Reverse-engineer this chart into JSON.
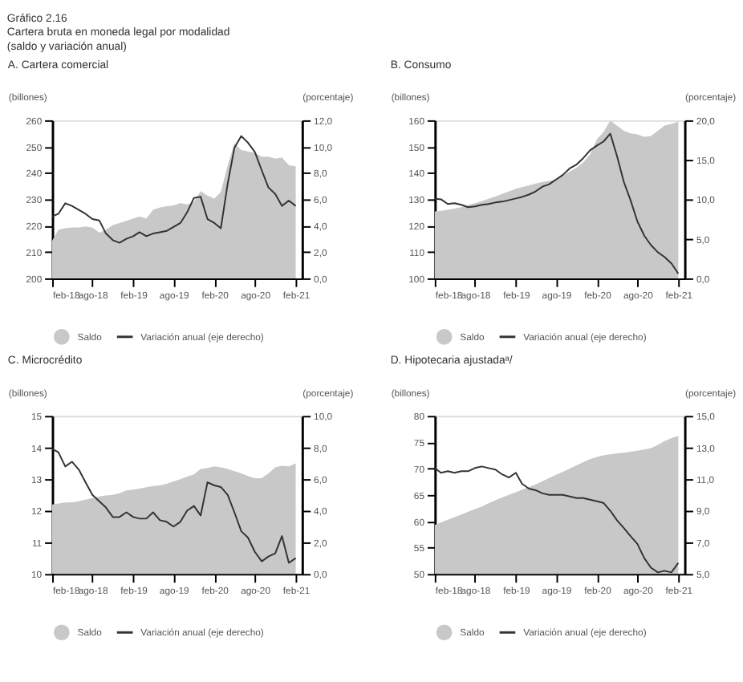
{
  "chart_data": [
    {
      "type": "line",
      "title": "A. Cartera comercial",
      "annotations": [
        "Gráfico 2.16",
        "Cartera bruta en moneda legal por modalidad",
        "(saldo y variación anual)"
      ],
      "ylabel": "(billones)",
      "y2label": "(porcentaje)",
      "legend": "bottom",
      "grid": false,
      "x": [
        "2018-02",
        "2018-03",
        "2018-04",
        "2018-05",
        "2018-06",
        "2018-07",
        "2018-08",
        "2018-09",
        "2018-10",
        "2018-11",
        "2018-12",
        "2019-01",
        "2019-02",
        "2019-03",
        "2019-04",
        "2019-05",
        "2019-06",
        "2019-07",
        "2019-08",
        "2019-09",
        "2019-10",
        "2019-11",
        "2019-12",
        "2020-01",
        "2020-02",
        "2020-03",
        "2020-04",
        "2020-05",
        "2020-06",
        "2020-07",
        "2020-08",
        "2020-09",
        "2020-10",
        "2020-11",
        "2020-12",
        "2021-01",
        "2021-02"
      ],
      "xlim": [
        "2018-02",
        "2021-03"
      ],
      "xticks": [
        {
          "value": "2018-02",
          "label": "feb-18"
        },
        {
          "value": "2018-08",
          "label": "ago-18"
        },
        {
          "value": "2019-02",
          "label": "feb-19"
        },
        {
          "value": "2019-08",
          "label": "ago-19"
        },
        {
          "value": "2020-02",
          "label": "feb-20"
        },
        {
          "value": "2020-08",
          "label": "ago-20"
        },
        {
          "value": "2021-02",
          "label": "feb-21"
        }
      ],
      "ylim": [
        200,
        260
      ],
      "yticks": [
        200,
        210,
        220,
        230,
        240,
        250,
        260
      ],
      "y2lim": [
        0,
        12
      ],
      "y2ticks": [
        {
          "value": 0,
          "label": "0,0"
        },
        {
          "value": 2,
          "label": "2,0"
        },
        {
          "value": 4,
          "label": "4,0"
        },
        {
          "value": 6,
          "label": "6,0"
        },
        {
          "value": 8,
          "label": "8,0"
        },
        {
          "value": 10,
          "label": "10,0"
        },
        {
          "value": 12,
          "label": "12,0"
        }
      ],
      "series": [
        {
          "name": "Saldo",
          "type": "area",
          "color": "#c8c8c8",
          "values": [
            214.3,
            218.5,
            219,
            219.3,
            219.3,
            219.7,
            219.3,
            217.3,
            218.5,
            220.2,
            221,
            221.8,
            222.7,
            223.5,
            222.7,
            226,
            226.9,
            227.4,
            227.7,
            228.6,
            228,
            229,
            233.1,
            231.4,
            230.3,
            232.8,
            242.9,
            251.3,
            248.7,
            248.2,
            247.6,
            246.2,
            246.2,
            245.4,
            245.9,
            242.9,
            242.5
          ]
        },
        {
          "name": "Variación anual (eje derecho)",
          "type": "line",
          "axis": "y2",
          "color": "#333333",
          "values": [
            4.7,
            4.9,
            5.7,
            5.5,
            5.2,
            4.9,
            4.5,
            4.4,
            3.4,
            2.9,
            2.7,
            3.0,
            3.2,
            3.5,
            3.2,
            3.4,
            3.5,
            3.6,
            3.9,
            4.2,
            5.0,
            6.1,
            6.2,
            4.5,
            4.2,
            3.8,
            7.2,
            9.9,
            10.8,
            10.3,
            9.6,
            8.2,
            6.9,
            6.4,
            5.5,
            5.9,
            5.5
          ]
        }
      ]
    },
    {
      "type": "line",
      "title": "B. Consumo",
      "ylabel": "(billones)",
      "y2label": "(porcentaje)",
      "legend": "bottom",
      "grid": false,
      "x": [
        "2018-02",
        "2018-03",
        "2018-04",
        "2018-05",
        "2018-06",
        "2018-07",
        "2018-08",
        "2018-09",
        "2018-10",
        "2018-11",
        "2018-12",
        "2019-01",
        "2019-02",
        "2019-03",
        "2019-04",
        "2019-05",
        "2019-06",
        "2019-07",
        "2019-08",
        "2019-09",
        "2019-10",
        "2019-11",
        "2019-12",
        "2020-01",
        "2020-02",
        "2020-03",
        "2020-04",
        "2020-05",
        "2020-06",
        "2020-07",
        "2020-08",
        "2020-09",
        "2020-10",
        "2020-11",
        "2020-12",
        "2021-01",
        "2021-02"
      ],
      "xlim": [
        "2018-02",
        "2021-03"
      ],
      "xticks": [
        {
          "value": "2018-02",
          "label": "feb-18"
        },
        {
          "value": "2018-08",
          "label": "ago-18"
        },
        {
          "value": "2019-02",
          "label": "feb-19"
        },
        {
          "value": "2019-08",
          "label": "ago-19"
        },
        {
          "value": "2020-02",
          "label": "feb-20"
        },
        {
          "value": "2020-08",
          "label": "ago-20"
        },
        {
          "value": "2021-02",
          "label": "feb-21"
        }
      ],
      "ylim": [
        100,
        160
      ],
      "yticks": [
        100,
        110,
        120,
        130,
        140,
        150,
        160
      ],
      "y2lim": [
        0,
        20
      ],
      "y2ticks": [
        {
          "value": 0,
          "label": "0,0"
        },
        {
          "value": 5,
          "label": "5,0"
        },
        {
          "value": 10,
          "label": "10,0"
        },
        {
          "value": 15,
          "label": "15,0"
        },
        {
          "value": 20,
          "label": "20,0"
        }
      ],
      "series": [
        {
          "name": "Saldo",
          "type": "area",
          "color": "#c8c8c8",
          "values": [
            125.4,
            125.6,
            126,
            126.5,
            127,
            127.8,
            128.5,
            129.3,
            130.2,
            131,
            132,
            133,
            134,
            134.6,
            135.3,
            136,
            136.6,
            137,
            137.6,
            139,
            140.5,
            142,
            144,
            147,
            152.8,
            155.5,
            159.8,
            158,
            156,
            155,
            154.6,
            153.7,
            154,
            156,
            158,
            158.6,
            159.5
          ]
        },
        {
          "name": "Variación anual (eje derecho)",
          "type": "line",
          "axis": "y2",
          "color": "#333333",
          "values": [
            10.1,
            10.0,
            9.4,
            9.5,
            9.3,
            9.0,
            9.1,
            9.3,
            9.4,
            9.6,
            9.7,
            9.9,
            10.1,
            10.3,
            10.6,
            11.0,
            11.6,
            11.9,
            12.5,
            13.1,
            13.9,
            14.4,
            15.2,
            16.2,
            16.8,
            17.3,
            18.3,
            15.5,
            12.2,
            9.9,
            7.2,
            5.4,
            4.2,
            3.3,
            2.7,
            1.9,
            0.6
          ]
        }
      ]
    },
    {
      "type": "line",
      "title": "C. Microcrédito",
      "ylabel": "(billones)",
      "y2label": "(porcentaje)",
      "legend": "bottom",
      "grid": false,
      "x": [
        "2018-02",
        "2018-03",
        "2018-04",
        "2018-05",
        "2018-06",
        "2018-07",
        "2018-08",
        "2018-09",
        "2018-10",
        "2018-11",
        "2018-12",
        "2019-01",
        "2019-02",
        "2019-03",
        "2019-04",
        "2019-05",
        "2019-06",
        "2019-07",
        "2019-08",
        "2019-09",
        "2019-10",
        "2019-11",
        "2019-12",
        "2020-01",
        "2020-02",
        "2020-03",
        "2020-04",
        "2020-05",
        "2020-06",
        "2020-07",
        "2020-08",
        "2020-09",
        "2020-10",
        "2020-11",
        "2020-12",
        "2021-01",
        "2021-02"
      ],
      "xlim": [
        "2018-02",
        "2021-03"
      ],
      "xticks": [
        {
          "value": "2018-02",
          "label": "feb-18"
        },
        {
          "value": "2018-08",
          "label": "ago-18"
        },
        {
          "value": "2019-02",
          "label": "feb-19"
        },
        {
          "value": "2019-08",
          "label": "ago-19"
        },
        {
          "value": "2020-02",
          "label": "feb-20"
        },
        {
          "value": "2020-08",
          "label": "ago-20"
        },
        {
          "value": "2021-02",
          "label": "feb-21"
        }
      ],
      "ylim": [
        10,
        15
      ],
      "yticks": [
        10,
        11,
        12,
        13,
        14,
        15
      ],
      "y2lim": [
        0,
        10
      ],
      "y2ticks": [
        {
          "value": 0,
          "label": "0,0"
        },
        {
          "value": 2,
          "label": "2,0"
        },
        {
          "value": 4,
          "label": "4,0"
        },
        {
          "value": 6,
          "label": "6,0"
        },
        {
          "value": 8,
          "label": "8,0"
        },
        {
          "value": 10,
          "label": "10,0"
        }
      ],
      "series": [
        {
          "name": "Saldo",
          "type": "area",
          "color": "#c8c8c8",
          "values": [
            12.2,
            12.23,
            12.26,
            12.27,
            12.3,
            12.35,
            12.4,
            12.45,
            12.48,
            12.5,
            12.55,
            12.64,
            12.67,
            12.7,
            12.74,
            12.78,
            12.8,
            12.85,
            12.93,
            13.0,
            13.08,
            13.15,
            13.32,
            13.35,
            13.4,
            13.37,
            13.32,
            13.25,
            13.18,
            13.1,
            13.03,
            13.03,
            13.18,
            13.37,
            13.42,
            13.4,
            13.5
          ]
        },
        {
          "name": "Variación anual (eje derecho)",
          "type": "line",
          "axis": "y2",
          "color": "#333333",
          "values": [
            7.9,
            7.7,
            6.8,
            7.1,
            6.6,
            5.8,
            5.0,
            4.6,
            4.2,
            3.6,
            3.6,
            3.9,
            3.6,
            3.5,
            3.5,
            3.9,
            3.4,
            3.3,
            3.0,
            3.3,
            4.0,
            4.3,
            3.7,
            5.8,
            5.6,
            5.5,
            5.0,
            3.9,
            2.7,
            2.3,
            1.4,
            0.8,
            1.1,
            1.3,
            2.4,
            0.7,
            1.0
          ]
        }
      ]
    },
    {
      "type": "line",
      "title": "D. Hipotecaria ajustadaᵃ/",
      "ylabel": "(billones)",
      "y2label": "(porcentaje)",
      "legend": "bottom",
      "grid": false,
      "x": [
        "2018-02",
        "2018-03",
        "2018-04",
        "2018-05",
        "2018-06",
        "2018-07",
        "2018-08",
        "2018-09",
        "2018-10",
        "2018-11",
        "2018-12",
        "2019-01",
        "2019-02",
        "2019-03",
        "2019-04",
        "2019-05",
        "2019-06",
        "2019-07",
        "2019-08",
        "2019-09",
        "2019-10",
        "2019-11",
        "2019-12",
        "2020-01",
        "2020-02",
        "2020-03",
        "2020-04",
        "2020-05",
        "2020-06",
        "2020-07",
        "2020-08",
        "2020-09",
        "2020-10",
        "2020-11",
        "2020-12",
        "2021-01",
        "2021-02"
      ],
      "xlim": [
        "2018-02",
        "2021-03"
      ],
      "xticks": [
        {
          "value": "2018-02",
          "label": "feb-18"
        },
        {
          "value": "2018-08",
          "label": "ago-18"
        },
        {
          "value": "2019-02",
          "label": "feb-19"
        },
        {
          "value": "2019-08",
          "label": "ago-19"
        },
        {
          "value": "2020-02",
          "label": "feb-20"
        },
        {
          "value": "2020-08",
          "label": "ago-20"
        },
        {
          "value": "2021-02",
          "label": "feb-21"
        }
      ],
      "ylim": [
        50,
        80
      ],
      "yticks": [
        50,
        55,
        60,
        65,
        70,
        75,
        80
      ],
      "y2lim": [
        5,
        15
      ],
      "y2ticks": [
        {
          "value": 5,
          "label": "5,0"
        },
        {
          "value": 7,
          "label": "7,0"
        },
        {
          "value": 9,
          "label": "9,0"
        },
        {
          "value": 11,
          "label": "11,0"
        },
        {
          "value": 13,
          "label": "13,0"
        },
        {
          "value": 15,
          "label": "15,0"
        }
      ],
      "series": [
        {
          "name": "Saldo",
          "type": "area",
          "color": "#c8c8c8",
          "values": [
            59.3,
            59.8,
            60.3,
            60.8,
            61.3,
            61.8,
            62.3,
            62.8,
            63.4,
            64,
            64.5,
            65,
            65.5,
            66,
            66.5,
            67,
            67.6,
            68.2,
            68.8,
            69.4,
            70,
            70.6,
            71.2,
            71.8,
            72.2,
            72.5,
            72.7,
            72.9,
            73,
            73.2,
            73.4,
            73.6,
            73.9,
            74.5,
            75.2,
            75.8,
            76.2
          ]
        },
        {
          "name": "Variación anual (eje derecho)",
          "type": "line",
          "axis": "y2",
          "color": "#333333",
          "values": [
            11.7,
            11.4,
            11.5,
            11.4,
            11.5,
            11.5,
            11.7,
            11.8,
            11.7,
            11.6,
            11.3,
            11.1,
            11.4,
            10.7,
            10.4,
            10.3,
            10.1,
            10.0,
            10.0,
            10.0,
            9.9,
            9.8,
            9.8,
            9.7,
            9.6,
            9.5,
            9.0,
            8.4,
            7.9,
            7.4,
            6.9,
            6.0,
            5.4,
            5.1,
            5.2,
            5.1,
            5.7
          ]
        }
      ]
    }
  ]
}
